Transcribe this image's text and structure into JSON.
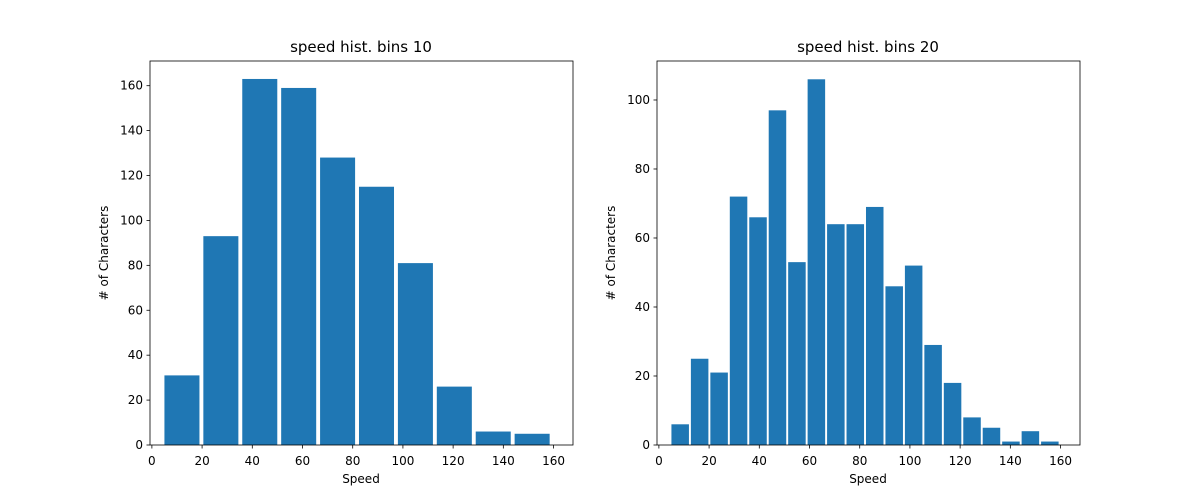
{
  "chart_data": [
    {
      "type": "bar",
      "title": "speed hist. bins 10",
      "xlabel": "Speed",
      "ylabel": "# of Characters",
      "xlim": [
        -0.75,
        167.75
      ],
      "ylim": [
        0,
        171
      ],
      "xticks": [
        0,
        20,
        40,
        60,
        80,
        100,
        120,
        140,
        160
      ],
      "yticks": [
        0,
        20,
        40,
        60,
        80,
        100,
        120,
        140,
        160
      ],
      "bin_edges": [
        5,
        20.5,
        36,
        51.5,
        67,
        82.5,
        98,
        113.5,
        129,
        144.5,
        160
      ],
      "values": [
        31,
        93,
        163,
        159,
        128,
        115,
        81,
        26,
        6,
        5
      ],
      "bar_fill_fraction": 0.9,
      "color": "#1f77b4"
    },
    {
      "type": "bar",
      "title": "speed hist. bins 20",
      "xlabel": "Speed",
      "ylabel": "# of Characters",
      "xlim": [
        -0.75,
        167.75
      ],
      "ylim": [
        0,
        111.3
      ],
      "xticks": [
        0,
        20,
        40,
        60,
        80,
        100,
        120,
        140,
        160
      ],
      "yticks": [
        0,
        20,
        40,
        60,
        80,
        100
      ],
      "bin_edges": [
        5,
        12.75,
        20.5,
        28.25,
        36,
        43.75,
        51.5,
        59.25,
        67,
        74.75,
        82.5,
        90.25,
        98,
        105.75,
        113.5,
        121.25,
        129,
        136.75,
        144.5,
        152.25,
        160
      ],
      "values": [
        6,
        25,
        21,
        72,
        66,
        97,
        53,
        106,
        64,
        64,
        69,
        46,
        52,
        29,
        18,
        8,
        5,
        1,
        4,
        1
      ],
      "bar_fill_fraction": 0.9,
      "color": "#1f77b4"
    }
  ]
}
